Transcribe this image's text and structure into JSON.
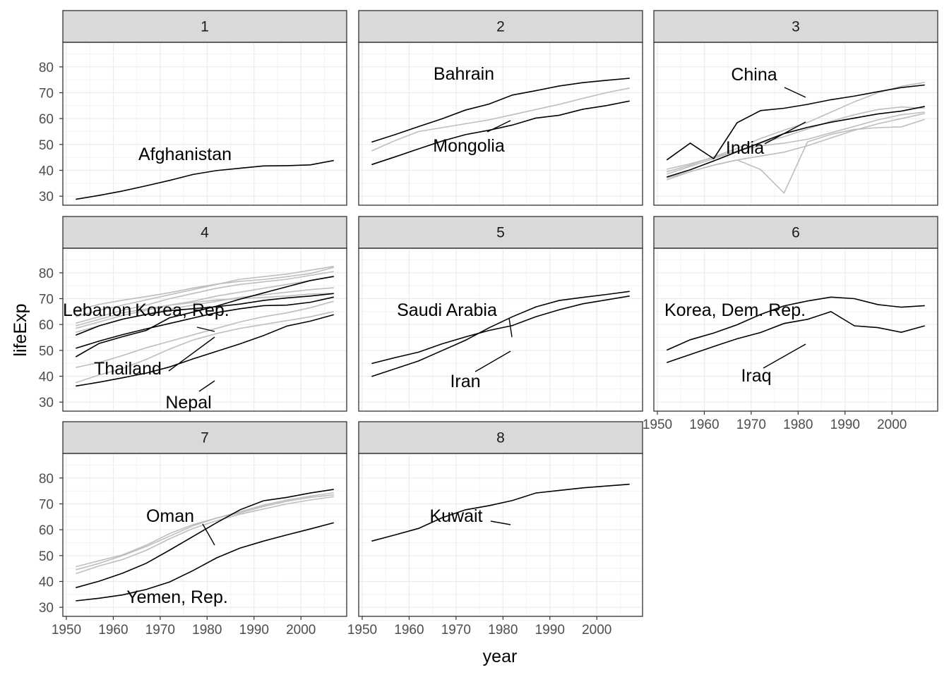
{
  "chart_data": {
    "type": "line",
    "xlabel": "year",
    "ylabel": "lifeExp",
    "xlim": [
      1949.25,
      2009.75
    ],
    "ylim": [
      26.5,
      89.5
    ],
    "x_ticks": [
      1950,
      1960,
      1970,
      1980,
      1990,
      2000
    ],
    "y_ticks": [
      30,
      40,
      50,
      60,
      70,
      80
    ],
    "grid": true,
    "years": [
      1952,
      1957,
      1962,
      1967,
      1972,
      1977,
      1982,
      1987,
      1992,
      1997,
      2002,
      2007
    ],
    "panels": [
      {
        "strip": "1",
        "highlighted": [
          {
            "name": "Afghanistan",
            "values": [
              28.8,
              30.3,
              32.0,
              34.0,
              36.1,
              38.4,
              39.9,
              40.8,
              41.7,
              41.8,
              42.1,
              43.8
            ]
          }
        ],
        "others": []
      },
      {
        "strip": "2",
        "highlighted": [
          {
            "name": "Bahrain",
            "values": [
              50.9,
              53.8,
              56.9,
              59.9,
              63.3,
              65.6,
              69.1,
              70.8,
              72.6,
              73.9,
              74.8,
              75.6
            ]
          },
          {
            "name": "Mongolia",
            "values": [
              42.2,
              45.2,
              48.3,
              51.3,
              53.8,
              55.5,
              57.5,
              60.2,
              61.3,
              63.6,
              65.0,
              66.8
            ]
          }
        ],
        "others": [
          {
            "values": [
              47.5,
              51.5,
              55.0,
              56.5,
              58.0,
              59.5,
              61.5,
              63.5,
              65.5,
              67.8,
              70.0,
              71.8
            ]
          }
        ]
      },
      {
        "strip": "3",
        "highlighted": [
          {
            "name": "China",
            "values": [
              44.0,
              50.5,
              44.5,
              58.4,
              63.1,
              64.0,
              65.5,
              67.3,
              68.7,
              70.4,
              72.0,
              73.0
            ]
          },
          {
            "name": "India",
            "values": [
              37.4,
              40.2,
              43.6,
              47.2,
              50.7,
              54.2,
              56.6,
              58.6,
              60.2,
              61.8,
              62.9,
              64.7
            ]
          }
        ],
        "others": [
          {
            "values": [
              39.4,
              42.0,
              45.2,
              48.5,
              52.3,
              55.5,
              58.5,
              62.5,
              66.5,
              70.0,
              72.5,
              74.0
            ]
          },
          {
            "values": [
              36.3,
              39.5,
              42.0,
              44.0,
              40.3,
              31.2,
              51.0,
              53.9,
              55.8,
              56.5,
              56.8,
              59.7
            ]
          },
          {
            "values": [
              38.5,
              41.5,
              44.5,
              47.5,
              50.5,
              53.0,
              56.0,
              59.0,
              61.5,
              63.5,
              64.5,
              64.0
            ]
          },
          {
            "values": [
              37.0,
              39.5,
              42.0,
              44.0,
              45.5,
              47.0,
              49.5,
              52.5,
              55.5,
              58.0,
              60.0,
              62.0
            ]
          },
          {
            "values": [
              40.4,
              42.5,
              45.0,
              47.5,
              49.5,
              50.5,
              52.0,
              54.5,
              57.0,
              59.5,
              61.5,
              62.5
            ]
          }
        ]
      },
      {
        "strip": "4",
        "highlighted": [
          {
            "name": "Lebanon",
            "values": [
              55.9,
              59.5,
              62.1,
              63.9,
              65.4,
              66.1,
              66.9,
              67.9,
              69.3,
              70.3,
              71.0,
              72.0
            ]
          },
          {
            "name": "Korea, Rep.",
            "values": [
              47.5,
              52.7,
              55.3,
              57.7,
              62.6,
              64.8,
              67.1,
              69.8,
              72.2,
              74.6,
              77.0,
              78.6
            ]
          },
          {
            "name": "Thailand",
            "values": [
              50.8,
              53.6,
              56.1,
              58.3,
              60.4,
              62.5,
              64.6,
              66.1,
              67.3,
              67.5,
              68.6,
              70.6
            ]
          },
          {
            "name": "Nepal",
            "values": [
              36.2,
              37.7,
              39.4,
              41.2,
              43.6,
              46.7,
              49.6,
              52.5,
              55.7,
              59.4,
              61.3,
              63.8
            ]
          }
        ],
        "others": [
          {
            "values": [
              65.4,
              67.8,
              69.4,
              70.8,
              72.3,
              74.1,
              75.6,
              76.7,
              77.4,
              78.5,
              79.7,
              82.1
            ]
          },
          {
            "values": [
              63.0,
              65.5,
              67.5,
              69.5,
              71.5,
              73.5,
              75.5,
              77.5,
              78.5,
              79.5,
              81.0,
              82.5
            ]
          },
          {
            "values": [
              60.5,
              63.0,
              65.5,
              67.5,
              70.0,
              72.0,
              74.0,
              75.5,
              76.5,
              77.5,
              79.0,
              80.5
            ]
          },
          {
            "values": [
              58.5,
              61.0,
              63.5,
              65.5,
              67.5,
              69.0,
              71.0,
              72.5,
              74.0,
              75.5,
              77.0,
              78.5
            ]
          },
          {
            "values": [
              57.0,
              59.5,
              62.0,
              64.0,
              66.0,
              67.5,
              69.0,
              70.5,
              71.5,
              72.5,
              73.5,
              74.2
            ]
          },
          {
            "values": [
              59.5,
              62.0,
              64.5,
              66.0,
              67.5,
              68.5,
              69.5,
              70.0,
              70.5,
              71.0,
              71.8,
              72.0
            ]
          },
          {
            "values": [
              43.4,
              45.3,
              48.0,
              51.0,
              53.5,
              56.0,
              58.5,
              61.0,
              63.0,
              64.5,
              66.5,
              69.0
            ]
          },
          {
            "values": [
              37.5,
              40.5,
              43.0,
              46.5,
              50.5,
              54.0,
              56.5,
              58.5,
              60.0,
              61.5,
              63.0,
              65.0
            ]
          }
        ]
      },
      {
        "strip": "5",
        "highlighted": [
          {
            "name": "Saudi Arabia",
            "values": [
              39.9,
              42.9,
              45.9,
              49.9,
              53.9,
              58.7,
              63.0,
              66.8,
              69.3,
              70.5,
              71.6,
              72.8
            ]
          },
          {
            "name": "Iran",
            "values": [
              44.9,
              47.2,
              49.3,
              52.5,
              55.2,
              57.7,
              59.6,
              63.0,
              65.7,
              68.0,
              69.5,
              71.0
            ]
          }
        ],
        "others": []
      },
      {
        "strip": "6",
        "highlighted": [
          {
            "name": "Korea, Dem. Rep.",
            "values": [
              50.1,
              54.1,
              56.7,
              59.9,
              63.9,
              67.2,
              69.1,
              70.6,
              70.0,
              67.7,
              66.7,
              67.3
            ]
          },
          {
            "name": "Iraq",
            "values": [
              45.3,
              48.4,
              51.5,
              54.5,
              56.9,
              60.4,
              62.0,
              65.0,
              59.5,
              58.8,
              57.0,
              59.5
            ]
          }
        ],
        "others": []
      },
      {
        "strip": "7",
        "highlighted": [
          {
            "name": "Oman",
            "values": [
              37.6,
              40.1,
              43.2,
              47.0,
              52.1,
              57.4,
              62.7,
              67.7,
              71.2,
              72.5,
              74.2,
              75.6
            ]
          },
          {
            "name": "Yemen, Rep.",
            "values": [
              32.5,
              33.5,
              34.8,
              36.9,
              39.8,
              44.2,
              49.1,
              52.9,
              55.6,
              58.0,
              60.3,
              62.7
            ]
          }
        ],
        "others": [
          {
            "values": [
              45.7,
              48.0,
              50.3,
              54.0,
              58.5,
              62.0,
              64.5,
              66.5,
              69.0,
              71.0,
              72.5,
              73.5
            ]
          },
          {
            "values": [
              43.0,
              46.0,
              48.5,
              52.0,
              56.5,
              60.5,
              63.5,
              66.0,
              68.0,
              70.0,
              71.5,
              72.8
            ]
          },
          {
            "values": [
              44.5,
              47.0,
              50.0,
              53.5,
              57.5,
              61.5,
              64.5,
              67.0,
              69.5,
              71.5,
              73.0,
              74.3
            ]
          }
        ]
      },
      {
        "strip": "8",
        "highlighted": [
          {
            "name": "Kuwait",
            "values": [
              55.6,
              58.0,
              60.5,
              64.6,
              67.7,
              69.3,
              71.3,
              74.2,
              75.2,
              76.2,
              76.9,
              77.6
            ]
          }
        ],
        "others": []
      }
    ]
  }
}
